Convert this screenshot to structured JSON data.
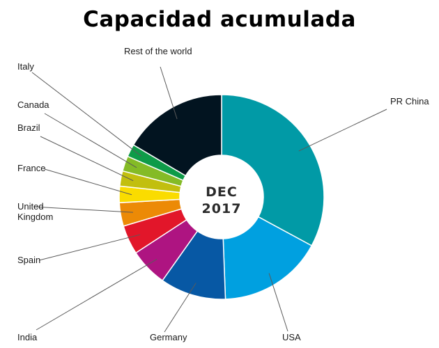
{
  "chart_data": {
    "type": "pie",
    "title": "Capacidad acumulada",
    "center_label": [
      "DEC",
      "2017"
    ],
    "slices": [
      {
        "label": "PR China",
        "lines": [
          "PR China"
        ],
        "value": 32.9,
        "color": "#019aa6"
      },
      {
        "label": "USA",
        "lines": [
          "USA"
        ],
        "value": 16.5,
        "color": "#00a0e0"
      },
      {
        "label": "Germany",
        "lines": [
          "Germany"
        ],
        "value": 10.4,
        "color": "#0758a4"
      },
      {
        "label": "India",
        "lines": [
          "India"
        ],
        "value": 6.0,
        "color": "#ae1481"
      },
      {
        "label": "Spain",
        "lines": [
          "Spain"
        ],
        "value": 4.6,
        "color": "#e2162a"
      },
      {
        "label": "United Kingdom",
        "lines": [
          "United",
          "Kingdom"
        ],
        "value": 3.7,
        "color": "#ec8a06"
      },
      {
        "label": "France",
        "lines": [
          "France"
        ],
        "value": 2.6,
        "color": "#fadc00"
      },
      {
        "label": "Brazil",
        "lines": [
          "Brazil"
        ],
        "value": 2.4,
        "color": "#c2bf0e"
      },
      {
        "label": "Canada",
        "lines": [
          "Canada"
        ],
        "value": 2.4,
        "color": "#84bb26"
      },
      {
        "label": "Italy",
        "lines": [
          "Italy"
        ],
        "value": 2.0,
        "color": "#0e9b48"
      },
      {
        "label": "Rest of the world",
        "lines": [
          "Rest of the world"
        ],
        "value": 16.5,
        "color": "#021420"
      }
    ]
  }
}
